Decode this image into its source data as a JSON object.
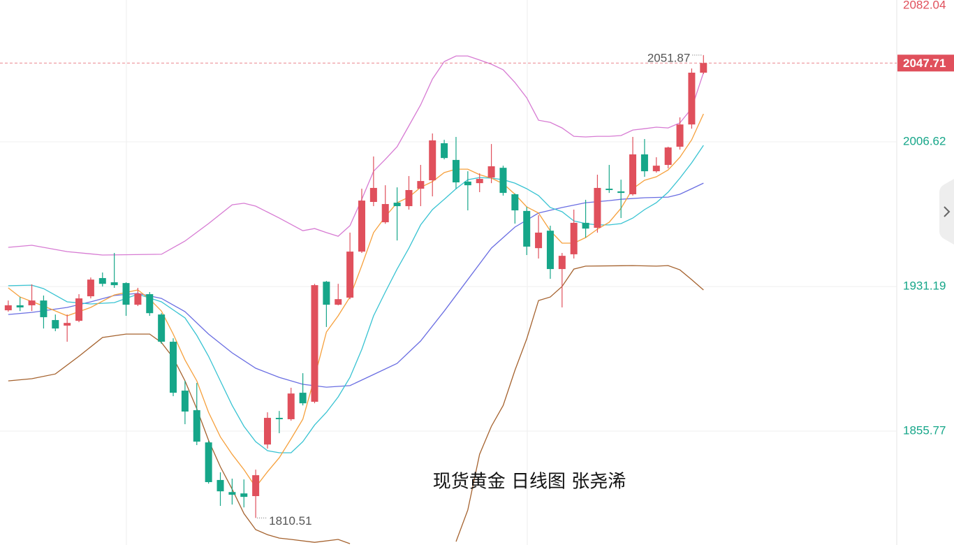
{
  "chart_data": {
    "type": "candlestick",
    "title": "现货黄金 日线图 张尧浠",
    "xlim": [
      -0.7,
      75.4
    ],
    "ylim": [
      1796.4,
      2080.6
    ],
    "yticks": [
      1855.77,
      1931.19,
      2006.62,
      2082.04
    ],
    "grid": true,
    "up_color": "#e0505c",
    "down_color": "#16a689",
    "open": [
      1918.8,
      1921.4,
      1921.4,
      1923.9,
      1913.7,
      1910.8,
      1913.3,
      1926.1,
      1935.6,
      1933.4,
      1933.0,
      1921.7,
      1927.2,
      1916.6,
      1902.4,
      1876.9,
      1866.7,
      1849.9,
      1830.3,
      1824.0,
      1823.3,
      1821.9,
      1848.8,
      1862.7,
      1862.0,
      1875.8,
      1871.1,
      1933.7,
      1921.7,
      1925.4,
      1949.4,
      1975.3,
      1964.7,
      1974.9,
      1973.1,
      1982.2,
      1986.6,
      2005.9,
      1997.2,
      1985.9,
      1985.1,
      1988.0,
      1993.1,
      1979.3,
      1970.6,
      1951.2,
      1960.3,
      1940.3,
      1948.0,
      1964.4,
      1961.8,
      1982.2,
      1980.8,
      1979.3,
      2000.1,
      1991.3,
      1994.6,
      2004.1,
      2015.7,
      2042.7
    ],
    "high": [
      1923.9,
      1925.7,
      1932.3,
      1926.5,
      1916.6,
      1916.6,
      1927.2,
      1935.9,
      1938.5,
      1948.7,
      1933.4,
      1930.5,
      1928.3,
      1917.3,
      1904.2,
      1882.0,
      1880.9,
      1850.7,
      1834.3,
      1831.0,
      1830.6,
      1835.7,
      1865.6,
      1866.3,
      1878.4,
      1886.0,
      1932.6,
      1934.1,
      1932.6,
      1959.3,
      1982.2,
      1999.0,
      1984.0,
      1982.9,
      1988.8,
      1994.6,
      2011.0,
      2007.7,
      2009.2,
      1991.3,
      1990.2,
      2005.5,
      1994.2,
      1979.7,
      1972.7,
      1968.4,
      1962.9,
      1948.7,
      1971.3,
      1976.4,
      1989.5,
      1994.6,
      1986.9,
      2009.2,
      2008.1,
      1998.6,
      2004.1,
      2019.4,
      2044.9,
      2051.87
    ],
    "low": [
      1918.1,
      1918.4,
      1918.4,
      1909.3,
      1907.9,
      1902.4,
      1912.6,
      1925.0,
      1931.2,
      1930.5,
      1915.9,
      1921.0,
      1915.9,
      1901.3,
      1874.0,
      1859.4,
      1848.5,
      1828.4,
      1816.8,
      1817.5,
      1816.0,
      1810.51,
      1846.7,
      1854.7,
      1861.2,
      1869.2,
      1870.3,
      1910.1,
      1921.4,
      1924.6,
      1948.7,
      1973.1,
      1963.9,
      1955.2,
      1971.3,
      1973.1,
      1978.2,
      1997.5,
      1982.2,
      1970.9,
      1980.4,
      1985.1,
      1978.6,
      1964.0,
      1947.6,
      1945.8,
      1935.2,
      1920.3,
      1945.8,
      1956.7,
      1959.3,
      1980.0,
      1966.9,
      1978.6,
      1988.4,
      1990.6,
      1992.8,
      2002.6,
      2013.5,
      2042.0
    ],
    "close": [
      1921.4,
      1920.3,
      1923.9,
      1915.2,
      1909.3,
      1912.2,
      1925.0,
      1934.8,
      1932.6,
      1931.9,
      1921.7,
      1927.5,
      1917.3,
      1902.4,
      1875.8,
      1866.0,
      1850.3,
      1829.2,
      1824.4,
      1822.6,
      1821.5,
      1832.8,
      1862.7,
      1862.0,
      1875.4,
      1870.3,
      1931.9,
      1921.7,
      1924.6,
      1949.4,
      1976.0,
      1982.6,
      1974.2,
      1973.1,
      1981.5,
      1986.2,
      2007.4,
      1998.2,
      1985.5,
      1984.0,
      1987.3,
      1993.9,
      1980.0,
      1970.9,
      1952.0,
      1959.3,
      1940.3,
      1947.2,
      1964.4,
      1961.4,
      1982.6,
      1981.5,
      1980.0,
      2000.1,
      1991.3,
      1994.2,
      2003.7,
      2015.7,
      2042.7,
      2047.71
    ],
    "lines": [
      {
        "color": "#d77bd3",
        "x": [
          0,
          2,
          5,
          8,
          13,
          15,
          17,
          19,
          20,
          21,
          23,
          25,
          26,
          27,
          28,
          29,
          30,
          31,
          32,
          33,
          34,
          35,
          36,
          37,
          38,
          39,
          40,
          41,
          42,
          43,
          44,
          45,
          46,
          47,
          48,
          49,
          50,
          51,
          52,
          53,
          54,
          55,
          56,
          57,
          58,
          59
        ],
        "values": [
          1951.6,
          1952.7,
          1949.4,
          1947.6,
          1948.0,
          1954.9,
          1964.0,
          1973.8,
          1974.6,
          1973.1,
          1966.9,
          1960.3,
          1961.4,
          1959.3,
          1957.4,
          1962.9,
          1976.7,
          1991.3,
          1997.5,
          2004.1,
          2015.0,
          2025.9,
          2039.4,
          2048.5,
          2051.4,
          2051.4,
          2049.3,
          2047.1,
          2044.2,
          2037.6,
          2029.6,
          2017.9,
          2016.8,
          2013.9,
          2009.5,
          2009.2,
          2009.5,
          2009.5,
          2009.9,
          2012.8,
          2013.5,
          2014.3,
          2013.9,
          2016.5,
          2024.1,
          2042.7
        ]
      },
      {
        "color": "#a5622e",
        "x": [
          0,
          2,
          4,
          6,
          8,
          10,
          12,
          13,
          14,
          15,
          16,
          17,
          18,
          19,
          20,
          21,
          22,
          23,
          24,
          26,
          28,
          29,
          33,
          38,
          39,
          40,
          41,
          42,
          43,
          44,
          45,
          46,
          47,
          48,
          49,
          53,
          55,
          56,
          57,
          58,
          59
        ],
        "values": [
          1882.0,
          1883.1,
          1885.6,
          1894.8,
          1904.6,
          1906.4,
          1906.4,
          1902.0,
          1894.0,
          1882.0,
          1867.4,
          1851.0,
          1837.2,
          1825.5,
          1812.8,
          1804.4,
          1801.8,
          1800.0,
          1799.3,
          1797.8,
          1799.3,
          1797.1,
          null,
          1798.2,
          1814.6,
          1843.7,
          1858.3,
          1869.2,
          1887.5,
          1903.9,
          1923.9,
          1925.7,
          1931.2,
          1940.3,
          1941.8,
          1942.1,
          1941.8,
          1942.1,
          1939.9,
          1934.8,
          1929.4
        ]
      },
      {
        "color": "#6a6ee2",
        "x": [
          0,
          2,
          5,
          7,
          9,
          11,
          13,
          15,
          17,
          19,
          21,
          23,
          25,
          27,
          29,
          31,
          33,
          35,
          37,
          39,
          41,
          43,
          45,
          47,
          49,
          51,
          52,
          54,
          56,
          57,
          58,
          59
        ],
        "values": [
          1916.6,
          1917.7,
          1920.3,
          1923.2,
          1926.5,
          1927.6,
          1925.0,
          1918.1,
          1906.4,
          1896.6,
          1888.6,
          1883.8,
          1880.2,
          1878.7,
          1879.5,
          1885.3,
          1891.1,
          1902.8,
          1918.4,
          1934.8,
          1951.2,
          1962.2,
          1969.5,
          1972.4,
          1974.9,
          1976.0,
          1976.7,
          1977.5,
          1977.8,
          1979.3,
          1982.2,
          1985.1
        ]
      },
      {
        "color": "#38c3d2",
        "x": [
          0,
          2,
          3,
          5,
          7,
          9,
          11,
          13,
          15,
          16,
          17,
          18,
          19,
          20,
          21,
          22,
          23,
          24,
          25,
          26,
          27,
          28,
          29,
          30,
          31,
          32,
          33,
          34,
          35,
          36,
          37,
          38,
          39,
          40,
          41,
          42,
          43,
          44,
          45,
          46,
          47,
          48,
          49,
          50,
          51,
          52,
          53,
          54,
          55,
          56,
          57,
          58,
          59
        ],
        "values": [
          1931.6,
          1931.9,
          1930.1,
          1923.2,
          1922.1,
          1922.8,
          1927.2,
          1923.2,
          1914.8,
          1905.7,
          1894.8,
          1882.0,
          1869.2,
          1858.3,
          1850.3,
          1845.6,
          1844.5,
          1844.5,
          1850.3,
          1859.0,
          1865.6,
          1873.6,
          1883.8,
          1898.4,
          1915.9,
          1928.3,
          1940.3,
          1951.2,
          1963.3,
          1971.3,
          1976.7,
          1982.2,
          1986.9,
          1988.0,
          1987.7,
          1986.9,
          1985.1,
          1982.2,
          1978.6,
          1972.4,
          1970.2,
          1965.4,
          1964.0,
          1963.3,
          1963.3,
          1964.0,
          1966.9,
          1971.3,
          1974.9,
          1980.4,
          1987.7,
          1995.7,
          2004.8
        ]
      },
      {
        "color": "#f6a03c",
        "x": [
          0,
          1,
          3,
          5,
          7,
          9,
          11,
          12,
          13,
          14,
          15,
          16,
          17,
          18,
          19,
          20,
          21,
          22,
          23,
          24,
          25,
          26,
          27,
          28,
          29,
          30,
          31,
          32,
          33,
          34,
          35,
          36,
          37,
          38,
          39,
          40,
          41,
          42,
          43,
          44,
          45,
          46,
          47,
          48,
          49,
          50,
          51,
          52,
          53,
          54,
          55,
          56,
          57,
          58,
          59
        ],
        "values": [
          1930.5,
          1925.7,
          1921.0,
          1915.9,
          1920.3,
          1926.8,
          1929.4,
          1924.6,
          1918.4,
          1906.4,
          1892.9,
          1882.0,
          1865.6,
          1852.8,
          1843.7,
          1835.7,
          1826.6,
          1834.6,
          1841.9,
          1851.8,
          1862.0,
          1883.8,
          1907.5,
          1915.9,
          1925.7,
          1942.1,
          1959.3,
          1967.6,
          1974.9,
          1977.8,
          1982.9,
          1985.9,
          1990.6,
          1992.4,
          1992.4,
          1989.5,
          1987.7,
          1984.8,
          1979.3,
          1972.7,
          1969.5,
          1960.3,
          1953.8,
          1953.8,
          1956.7,
          1961.1,
          1964.7,
          1972.0,
          1982.2,
          1986.6,
          1988.4,
          1992.0,
          1998.6,
          2007.7,
          2021.2
        ]
      }
    ]
  }
}
